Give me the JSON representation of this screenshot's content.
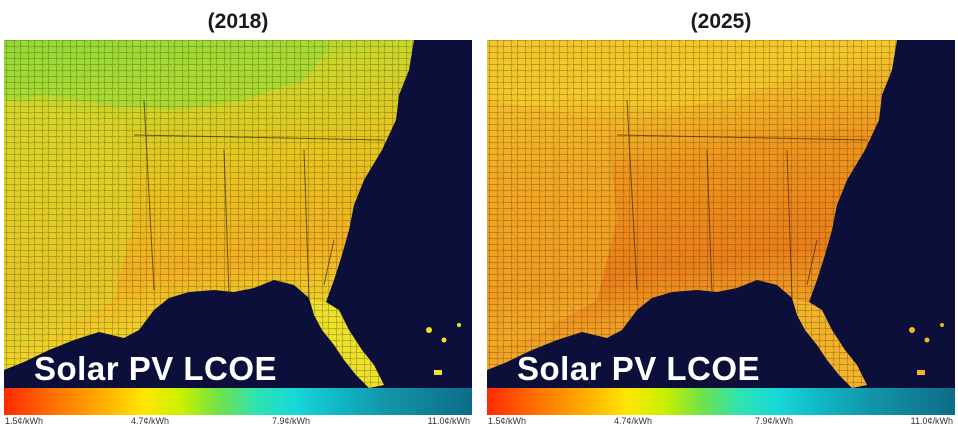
{
  "panels": [
    {
      "year": "(2018)",
      "label": "Solar PV LCOE",
      "colors": {
        "north": "#7ad43a",
        "northeast": "#9cdd36",
        "mid": "#e6c81e",
        "south": "#f3a61f",
        "west": "#dcd62a",
        "coastal": "#ece22a"
      }
    },
    {
      "year": "(2025)",
      "label": "Solar PV LCOE",
      "colors": {
        "north": "#f0c22a",
        "northeast": "#f4c92a",
        "mid": "#f0961c",
        "south": "#ec7f18",
        "west": "#f3b226",
        "coastal": "#f5b32a"
      }
    }
  ],
  "scale": {
    "ticks": [
      "1.5¢/kWh",
      "4.7¢/kWh",
      "7.9¢/kWh",
      "11.0¢/kWh"
    ]
  },
  "colors": {
    "ocean": "#0b0f3a",
    "borders": "#3a2a10"
  }
}
